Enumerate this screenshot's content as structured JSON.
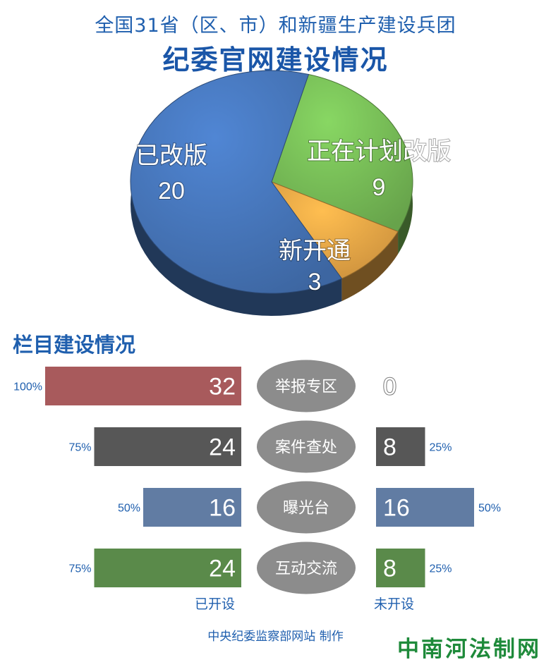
{
  "title": {
    "line1": "全国31省（区、市）和新疆生产建设兵团",
    "line2": "纪委官网建设情况"
  },
  "chart_data": [
    {
      "type": "pie",
      "slices": [
        {
          "label": "已改版",
          "value": 20,
          "color": "#4a7cc4"
        },
        {
          "label": "正在计划改版",
          "value": 9,
          "color": "#7ec75c"
        },
        {
          "label": "新开通",
          "value": 3,
          "color": "#f7b04a"
        }
      ]
    },
    {
      "type": "bar",
      "title": "栏目建设情况",
      "categories": [
        "举报专区",
        "案件查处",
        "曝光台",
        "互动交流"
      ],
      "series": [
        {
          "name": "已开设",
          "values": [
            32,
            24,
            16,
            24
          ],
          "percent_labels": [
            "100%",
            "75%",
            "50%",
            "75%"
          ]
        },
        {
          "name": "未开设",
          "values": [
            0,
            8,
            16,
            8
          ],
          "percent_labels": [
            "",
            "25%",
            "50%",
            "25%"
          ]
        }
      ],
      "colors": [
        "#a85a5c",
        "#575757",
        "#617ca3",
        "#5a8a4a"
      ],
      "max": 32
    }
  ],
  "footer": "中央纪委监察部网站 制作",
  "watermark": "中南河法制网"
}
